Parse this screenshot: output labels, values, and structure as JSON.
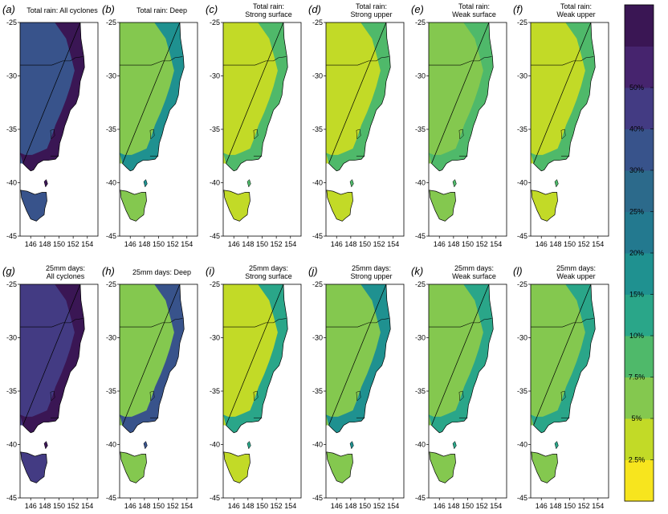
{
  "colors": {
    "scale": [
      "#f7e51e",
      "#c2da27",
      "#84c84f",
      "#4fb96a",
      "#2aa689",
      "#1f9190",
      "#23798f",
      "#2c6a8b",
      "#38538b",
      "#433b83",
      "#46246e",
      "#3a1654"
    ],
    "land_background": "#ffffff",
    "coastline": "#000000"
  },
  "panels": [
    {
      "label": "(a)",
      "title_lines": [
        "Total rain: All cyclones"
      ],
      "inland_level": 8,
      "coast_level": 11
    },
    {
      "label": "(b)",
      "title_lines": [
        "Total rain: Deep"
      ],
      "inland_level": 2,
      "coast_level": 5
    },
    {
      "label": "(c)",
      "title_lines": [
        "Total rain:",
        "Strong surface"
      ],
      "inland_level": 1,
      "coast_level": 3
    },
    {
      "label": "(d)",
      "title_lines": [
        "Total rain:",
        "Strong upper"
      ],
      "inland_level": 1,
      "coast_level": 3
    },
    {
      "label": "(e)",
      "title_lines": [
        "Total rain:",
        "Weak surface"
      ],
      "inland_level": 2,
      "coast_level": 3
    },
    {
      "label": "(f)",
      "title_lines": [
        "Total rain:",
        "Weak upper"
      ],
      "inland_level": 1,
      "coast_level": 3
    },
    {
      "label": "(g)",
      "title_lines": [
        "25mm days:",
        "All cyclones"
      ],
      "inland_level": 9,
      "coast_level": 11
    },
    {
      "label": "(h)",
      "title_lines": [
        "25mm days: Deep"
      ],
      "inland_level": 2,
      "coast_level": 8
    },
    {
      "label": "(i)",
      "title_lines": [
        "25mm days:",
        "Strong surface"
      ],
      "inland_level": 1,
      "coast_level": 4
    },
    {
      "label": "(j)",
      "title_lines": [
        "25mm days:",
        "Strong upper"
      ],
      "inland_level": 2,
      "coast_level": 5
    },
    {
      "label": "(k)",
      "title_lines": [
        "25mm days:",
        "Weak surface"
      ],
      "inland_level": 2,
      "coast_level": 4
    },
    {
      "label": "(l)",
      "title_lines": [
        "25mm days:",
        "Weak upper"
      ],
      "inland_level": 2,
      "coast_level": 4
    }
  ],
  "axes": {
    "y_ticks": [
      "-25",
      "-30",
      "-35",
      "-40",
      "-45"
    ],
    "x_ticks": [
      "146",
      "148",
      "150",
      "152",
      "154"
    ],
    "lat_range": [
      -45,
      -25
    ],
    "lon_range": [
      144.5,
      155.5
    ]
  },
  "colorbar": {
    "labels": [
      "2.5%",
      "5%",
      "7.5%",
      "10%",
      "15%",
      "20%",
      "25%",
      "30%",
      "40%",
      "50%"
    ]
  }
}
